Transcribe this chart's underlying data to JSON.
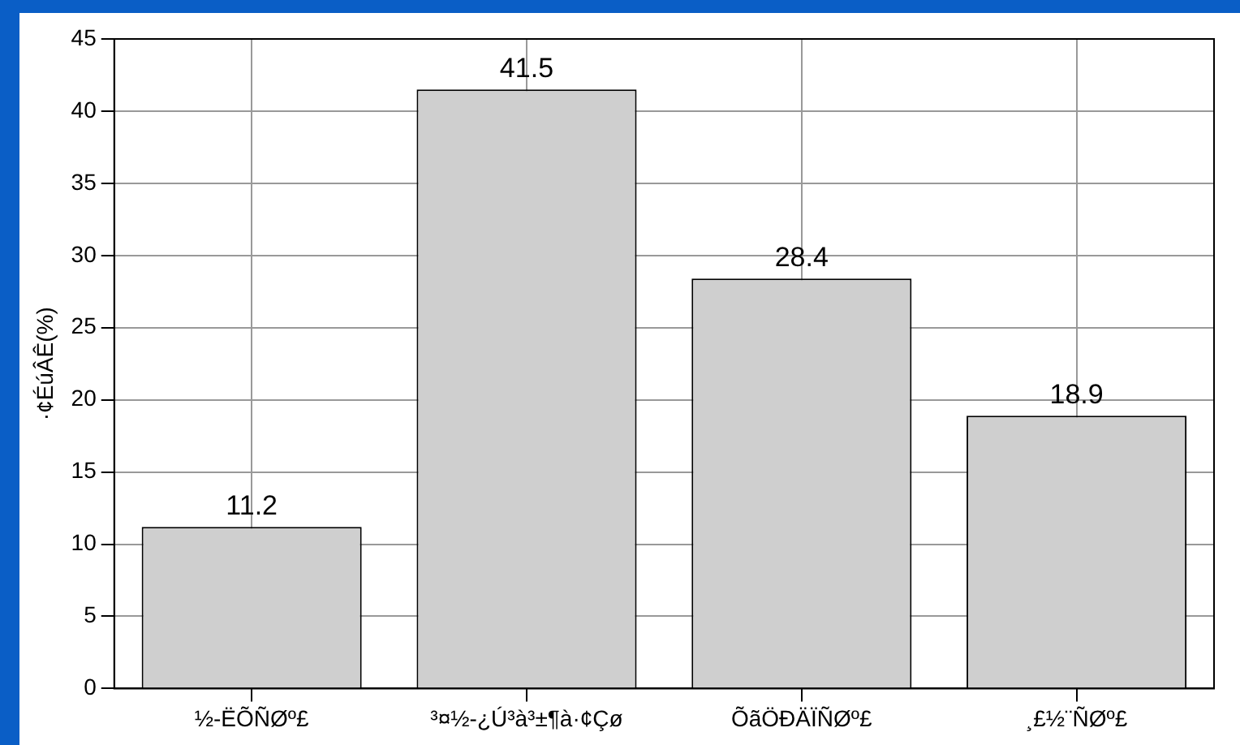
{
  "chart_data": {
    "type": "bar",
    "ylabel": "·¢ÉúÂÊ(%)",
    "categories": [
      "½-ËÕÑØº£",
      "³¤½-¿Ú³à³±¶à·¢Çø",
      "ÕãÖÐÄÏÑØº£",
      "¸£½¨ÑØº£"
    ],
    "values": [
      11.2,
      41.5,
      28.4,
      18.9
    ],
    "color": "#cfcfcf",
    "ylim": [
      0,
      45
    ],
    "yticks": [
      0,
      5,
      10,
      15,
      20,
      25,
      30,
      35,
      40,
      45
    ],
    "grid": true,
    "data_labels": true
  }
}
